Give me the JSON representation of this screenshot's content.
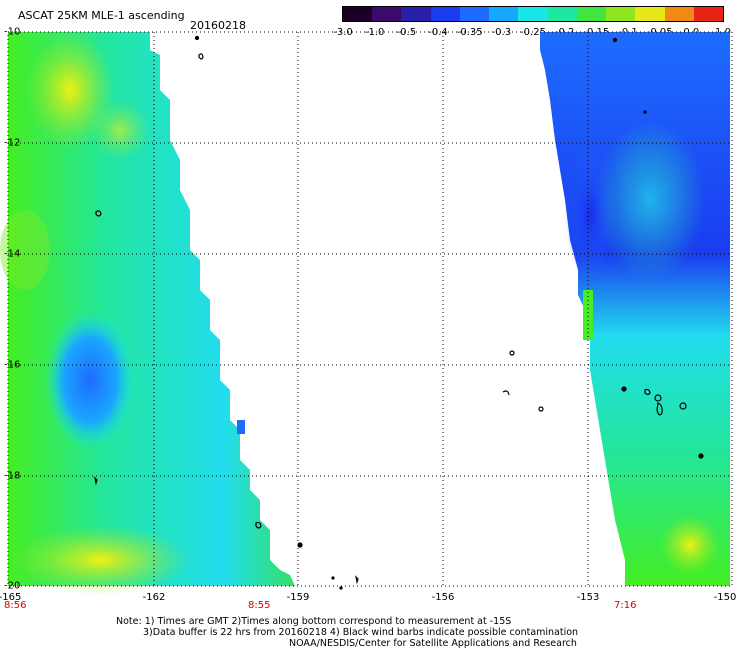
{
  "header": {
    "title": "ASCAT 25KM MLE-1 ascending",
    "date": "20160218"
  },
  "colorbar": {
    "labels": [
      "-3.0",
      "-1.0",
      "-0.5",
      "-0.4",
      "-0.35",
      "-0.3",
      "-0.25",
      "-0.2",
      "-0.15",
      "-0.1",
      "-0.05",
      "0.0",
      "1.0"
    ],
    "colors": [
      "#1a0026",
      "#3b0a6b",
      "#2a1fa8",
      "#1a3cf0",
      "#1e6cff",
      "#17a8ff",
      "#19e6e6",
      "#1ee8a0",
      "#3ee63e",
      "#8ee61e",
      "#e6e619",
      "#f08a14",
      "#e62314"
    ]
  },
  "axes": {
    "lat_ticks": [
      "-10",
      "-12",
      "-14",
      "-16",
      "-18",
      "-20"
    ],
    "lon_ticks": [
      "-165",
      "-162",
      "-159",
      "-156",
      "-153",
      "-150"
    ],
    "time_labels": [
      "8:56",
      "8:55",
      "7:16"
    ]
  },
  "notes": [
    "Note: 1) Times are GMT 2)Times along bottom correspond to measurement at -15S",
    "3)Data buffer is 22 hrs from 20160218 4) Black wind barbs indicate possible contamination",
    "NOAA/NESDIS/Center for Satellite Applications and Research"
  ],
  "map": {
    "lat_range": [
      -20,
      -10
    ],
    "lon_range": [
      -165,
      -150
    ],
    "swaths": [
      {
        "name": "west-swath",
        "lon_range": [
          -165,
          -158.8
        ]
      },
      {
        "name": "east-swath",
        "lon_range": [
          -153.8,
          -150
        ]
      }
    ]
  }
}
